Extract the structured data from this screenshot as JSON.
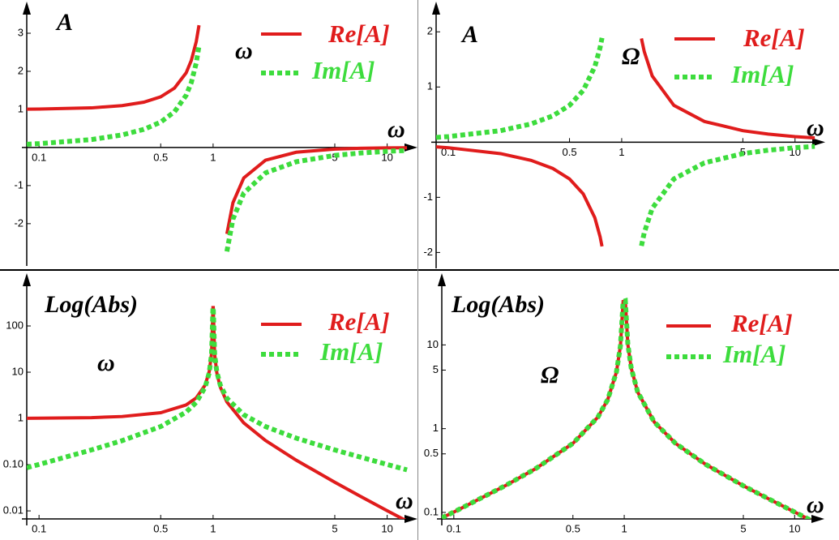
{
  "chart_data": [
    {
      "type": "line",
      "y_label": "A",
      "x_label": "ω",
      "annotation": "ω",
      "xlog": true,
      "ylog": false,
      "xlim": [
        0.085,
        14
      ],
      "ylim": [
        -2.94,
        3.66
      ],
      "xticks": [
        0.1,
        0.5,
        1,
        5,
        10
      ],
      "yticks": [
        -2,
        -1,
        1,
        2,
        3
      ],
      "x": [
        0.085,
        0.1,
        0.2,
        0.3,
        0.4,
        0.5,
        0.6,
        0.7,
        0.75,
        0.8,
        0.83,
        1,
        1.2,
        1.3,
        1.5,
        2,
        3,
        5,
        7,
        10,
        13
      ],
      "series": [
        {
          "name": "Re[A]",
          "color": "#e01c1c",
          "values": [
            1.007,
            1.01,
            1.04,
            1.1,
            1.19,
            1.33,
            1.56,
            1.96,
            2.29,
            2.78,
            3.21,
            null,
            -2.27,
            -1.45,
            -0.8,
            -0.333,
            -0.125,
            -0.042,
            -0.021,
            -0.0101,
            -0.006
          ]
        },
        {
          "name": "Im[A]",
          "color": "#3ddc3d",
          "values": [
            0.086,
            0.101,
            0.208,
            0.33,
            0.476,
            0.667,
            0.938,
            1.37,
            1.71,
            2.22,
            2.67,
            null,
            -2.73,
            -1.88,
            -1.2,
            -0.667,
            -0.375,
            -0.208,
            -0.146,
            -0.101,
            -0.077
          ]
        }
      ]
    },
    {
      "type": "line",
      "y_label": "A",
      "x_label": "ω",
      "annotation": "Ω",
      "xlog": true,
      "ylog": false,
      "xlim": [
        0.085,
        14
      ],
      "ylim": [
        -2.2,
        2.43
      ],
      "xticks": [
        0.1,
        0.5,
        1,
        5,
        10
      ],
      "yticks": [
        -2,
        -1,
        1,
        2
      ],
      "x": [
        0.085,
        0.1,
        0.2,
        0.3,
        0.4,
        0.5,
        0.6,
        0.7,
        0.75,
        0.77,
        1,
        1.3,
        1.35,
        1.5,
        2,
        3,
        5,
        7,
        10,
        13
      ],
      "series": [
        {
          "name": "Re[A]",
          "color": "#e01c1c",
          "values": [
            -0.086,
            -0.101,
            -0.208,
            -0.33,
            -0.476,
            -0.667,
            -0.938,
            -1.37,
            -1.71,
            -1.89,
            null,
            1.88,
            1.64,
            1.2,
            0.667,
            0.375,
            0.208,
            0.146,
            0.101,
            0.077
          ]
        },
        {
          "name": "Im[A]",
          "color": "#3ddc3d",
          "values": [
            0.086,
            0.101,
            0.208,
            0.33,
            0.476,
            0.667,
            0.938,
            1.37,
            1.71,
            1.89,
            null,
            -1.88,
            -1.64,
            -1.2,
            -0.667,
            -0.375,
            -0.208,
            -0.146,
            -0.101,
            -0.077
          ]
        }
      ]
    },
    {
      "type": "line",
      "y_label": "Log(Abs)",
      "x_label": "ω",
      "annotation": "ω",
      "xlog": true,
      "ylog": true,
      "xlim": [
        0.085,
        14
      ],
      "ylim": [
        0.0067,
        1000
      ],
      "xticks": [
        0.1,
        0.5,
        1,
        5,
        10
      ],
      "yticks": [
        0.01,
        {
          "value": 0.1,
          "label": "0.10"
        },
        1,
        10,
        100
      ],
      "x": [
        0.085,
        0.1,
        0.2,
        0.3,
        0.5,
        0.7,
        0.8,
        0.9,
        0.95,
        0.98,
        0.998,
        1.002,
        1.02,
        1.05,
        1.1,
        1.2,
        1.5,
        2,
        3,
        5,
        7,
        10,
        13
      ],
      "series": [
        {
          "name": "Re[A]",
          "color": "#e01c1c",
          "values": [
            1.007,
            1.01,
            1.04,
            1.1,
            1.33,
            1.96,
            2.78,
            5.26,
            10.3,
            25.3,
            250,
            250,
            24.8,
            9.76,
            4.76,
            2.27,
            0.8,
            0.333,
            0.125,
            0.0417,
            0.0208,
            0.0101,
            0.006
          ]
        },
        {
          "name": "Im[A]",
          "color": "#3ddc3d",
          "values": [
            0.086,
            0.101,
            0.208,
            0.33,
            0.667,
            1.37,
            2.22,
            4.74,
            9.74,
            24.7,
            250,
            250,
            25.2,
            10.2,
            5.24,
            2.73,
            1.2,
            0.667,
            0.375,
            0.208,
            0.146,
            0.101,
            0.077
          ]
        }
      ]
    },
    {
      "type": "line",
      "y_label": "Log(Abs)",
      "x_label": "ω",
      "annotation": "Ω",
      "xlog": true,
      "ylog": true,
      "xlim": [
        0.085,
        14
      ],
      "ylim": [
        0.0836,
        60
      ],
      "xticks": [
        0.1,
        0.5,
        1,
        5,
        10
      ],
      "yticks": [
        0.1,
        0.5,
        1,
        5,
        10
      ],
      "x": [
        0.085,
        0.1,
        0.2,
        0.3,
        0.5,
        0.7,
        0.8,
        0.9,
        0.95,
        0.985,
        1.015,
        1.05,
        1.1,
        1.2,
        1.5,
        2,
        3,
        5,
        7,
        10,
        13
      ],
      "series": [
        {
          "name": "Re[A]",
          "color": "#e01c1c",
          "values": [
            0.086,
            0.101,
            0.208,
            0.33,
            0.667,
            1.37,
            2.22,
            4.74,
            9.74,
            33,
            33.6,
            10.2,
            5.24,
            2.73,
            1.2,
            0.667,
            0.375,
            0.208,
            0.146,
            0.101,
            0.077
          ]
        },
        {
          "name": "Im[A]",
          "color": "#3ddc3d",
          "values": [
            0.086,
            0.101,
            0.208,
            0.33,
            0.667,
            1.37,
            2.22,
            4.74,
            9.74,
            33,
            33.6,
            10.2,
            5.24,
            2.73,
            1.2,
            0.667,
            0.375,
            0.208,
            0.146,
            0.101,
            0.077
          ]
        }
      ]
    }
  ]
}
